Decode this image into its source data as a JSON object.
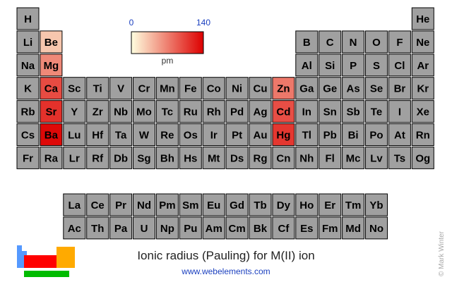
{
  "chart_data": {
    "type": "periodic-heatmap",
    "title": "Ionic radius (Pauling) for M(II) ion",
    "subtitle": "www.webelements.com",
    "credit": "© Mark Winter",
    "colorbar_label": "pm",
    "clim": [
      0,
      140
    ],
    "cticks": [
      0,
      140
    ],
    "colors": [
      "#ffffe0",
      "#dd0000"
    ],
    "empty_color": "#a0a0a0",
    "periods": [
      [
        "H",
        "He"
      ],
      [
        "Li",
        "Be",
        "B",
        "C",
        "N",
        "O",
        "F",
        "Ne"
      ],
      [
        "Na",
        "Mg",
        "Al",
        "Si",
        "P",
        "S",
        "Cl",
        "Ar"
      ],
      [
        "K",
        "Ca",
        "Sc",
        "Ti",
        "V",
        "Cr",
        "Mn",
        "Fe",
        "Co",
        "Ni",
        "Cu",
        "Zn",
        "Ga",
        "Ge",
        "As",
        "Se",
        "Br",
        "Kr"
      ],
      [
        "Rb",
        "Sr",
        "Y",
        "Zr",
        "Nb",
        "Mo",
        "Tc",
        "Ru",
        "Rh",
        "Pd",
        "Ag",
        "Cd",
        "In",
        "Sn",
        "Sb",
        "Te",
        "I",
        "Xe"
      ],
      [
        "Cs",
        "Ba",
        "Lu",
        "Hf",
        "Ta",
        "W",
        "Re",
        "Os",
        "Ir",
        "Pt",
        "Au",
        "Hg",
        "Tl",
        "Pb",
        "Bi",
        "Po",
        "At",
        "Rn"
      ],
      [
        "Fr",
        "Ra",
        "Lr",
        "Rf",
        "Db",
        "Sg",
        "Bh",
        "Hs",
        "Mt",
        "Ds",
        "Rg",
        "Cn",
        "Nh",
        "Fl",
        "Mc",
        "Lv",
        "Ts",
        "Og"
      ]
    ],
    "values": [
      [
        null,
        null
      ],
      [
        null,
        31,
        null,
        null,
        null,
        null,
        null,
        null
      ],
      [
        null,
        65,
        null,
        null,
        null,
        null,
        null,
        null
      ],
      [
        null,
        99,
        null,
        null,
        null,
        null,
        null,
        null,
        null,
        null,
        null,
        74,
        null,
        null,
        null,
        null,
        null,
        null
      ],
      [
        null,
        113,
        null,
        null,
        null,
        null,
        null,
        null,
        null,
        null,
        null,
        97,
        null,
        null,
        null,
        null,
        null,
        null
      ],
      [
        null,
        135,
        null,
        null,
        null,
        null,
        null,
        null,
        null,
        null,
        null,
        110,
        null,
        null,
        null,
        null,
        null,
        null
      ],
      [
        null,
        null,
        null,
        null,
        null,
        null,
        null,
        null,
        null,
        null,
        null,
        null,
        null,
        null,
        null,
        null,
        null,
        null
      ]
    ],
    "f_block": [
      [
        "La",
        "Ce",
        "Pr",
        "Nd",
        "Pm",
        "Sm",
        "Eu",
        "Gd",
        "Tb",
        "Dy",
        "Ho",
        "Er",
        "Tm",
        "Yb"
      ],
      [
        "Ac",
        "Th",
        "Pa",
        "U",
        "Np",
        "Pu",
        "Am",
        "Cm",
        "Bk",
        "Cf",
        "Es",
        "Fm",
        "Md",
        "No"
      ]
    ]
  }
}
